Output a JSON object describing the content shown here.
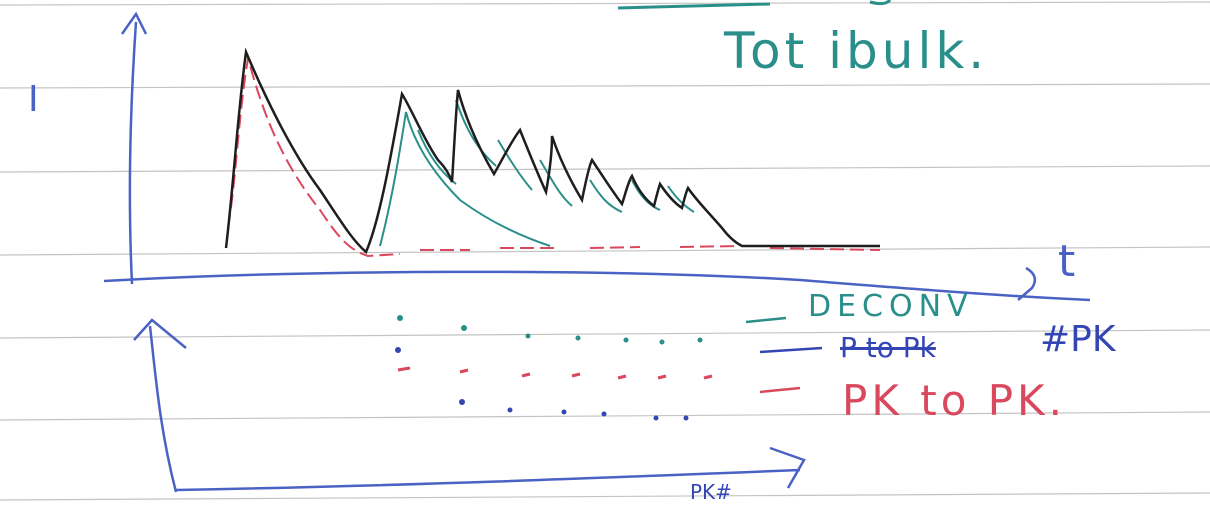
{
  "colors": {
    "paper": "#ffffff",
    "ruled_line": "#bfbfbf",
    "axis_ink": "#4a62c4",
    "black_ink": "#1e1e1e",
    "teal_ink": "#2a8f8a",
    "red_ink": "#d9485c",
    "blue_ink": "#3446b4"
  },
  "top_note": "Tot ibulk.",
  "top_plot": {
    "y_axis_label": "I",
    "x_axis_label": "t"
  },
  "bottom_plot": {
    "x_axis_label": "PK#",
    "legend": [
      {
        "text": "DECONV",
        "color": "teal"
      },
      {
        "text": "P to Pk",
        "color": "blue",
        "struck_out": true
      },
      {
        "text": "#PK",
        "color": "blue"
      },
      {
        "text": "PK to PK.",
        "color": "red"
      }
    ]
  }
}
